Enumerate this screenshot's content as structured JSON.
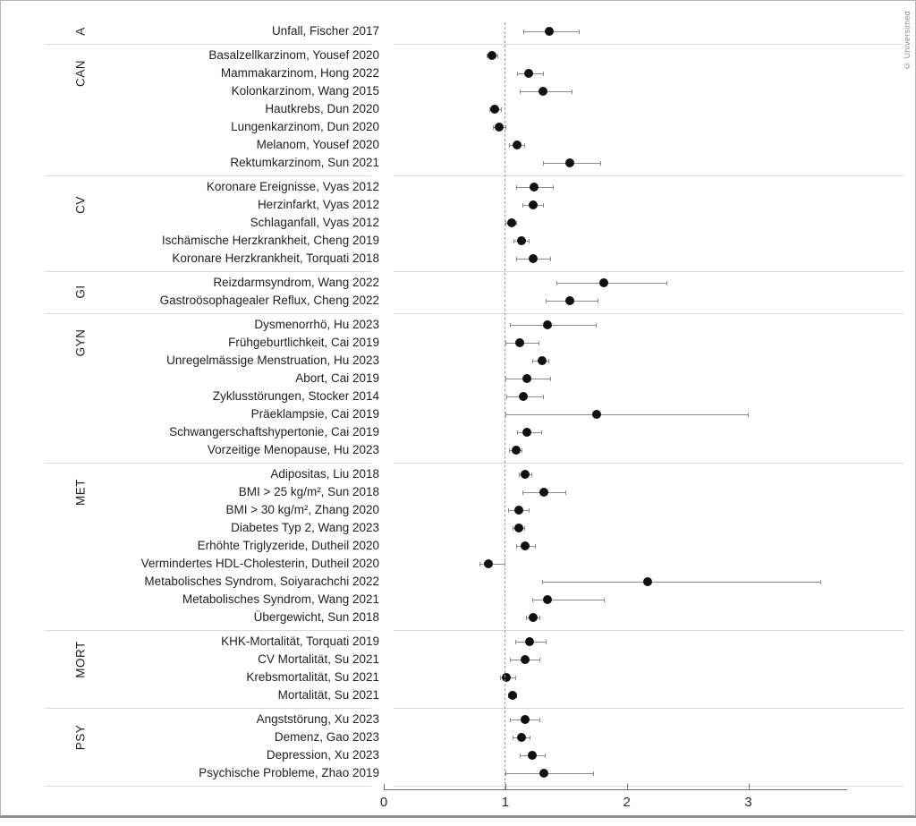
{
  "page": {
    "copyright": "© Universimed"
  },
  "chart_data": {
    "type": "scatter",
    "variant": "forest-plot",
    "title": "",
    "xlabel": "",
    "ylabel": "",
    "grid": false,
    "legend": null,
    "point_color": "#111111",
    "ci_color": "#8a8a8a",
    "reference_line_color": "#9b9b9b",
    "x_axis": {
      "min": 0,
      "max": 3.8,
      "tick_labels": [
        "0",
        "1",
        "2",
        "3"
      ],
      "tick_values": [
        0,
        1,
        2,
        3
      ],
      "reference_line": 1,
      "reference_style": "dashed"
    },
    "groups": [
      {
        "code": "A",
        "studies": [
          {
            "label": "Unfall, Fischer 2017",
            "est": 1.36,
            "lo": 1.15,
            "hi": 1.61
          }
        ]
      },
      {
        "code": "CAN",
        "studies": [
          {
            "label": "Basalzellkarzinom, Yousef 2020",
            "est": 0.89,
            "lo": 0.85,
            "hi": 0.94
          },
          {
            "label": "Mammakarzinom, Hong 2022",
            "est": 1.19,
            "lo": 1.1,
            "hi": 1.32
          },
          {
            "label": "Kolonkarzinom, Wang 2015",
            "est": 1.31,
            "lo": 1.12,
            "hi": 1.55
          },
          {
            "label": "Hautkrebs, Dun 2020",
            "est": 0.91,
            "lo": 0.87,
            "hi": 0.97
          },
          {
            "label": "Lungenkarzinom, Dun 2020",
            "est": 0.95,
            "lo": 0.9,
            "hi": 1.01
          },
          {
            "label": "Melanom, Yousef 2020",
            "est": 1.1,
            "lo": 1.03,
            "hi": 1.16
          },
          {
            "label": "Rektumkarzinom, Sun 2021",
            "est": 1.53,
            "lo": 1.31,
            "hi": 1.79
          }
        ]
      },
      {
        "code": "CV",
        "studies": [
          {
            "label": "Koronare Ereignisse, Vyas 2012",
            "est": 1.24,
            "lo": 1.09,
            "hi": 1.4
          },
          {
            "label": "Herzinfarkt, Vyas 2012",
            "est": 1.23,
            "lo": 1.14,
            "hi": 1.32
          },
          {
            "label": "Schlaganfall, Vyas 2012",
            "est": 1.05,
            "lo": 1.0,
            "hi": 1.1
          },
          {
            "label": "Ischämische Herzkrankheit, Cheng 2019",
            "est": 1.13,
            "lo": 1.07,
            "hi": 1.2
          },
          {
            "label": "Koronare Herzkrankheit, Torquati 2018",
            "est": 1.23,
            "lo": 1.09,
            "hi": 1.38
          }
        ]
      },
      {
        "code": "GI",
        "studies": [
          {
            "label": "Reizdarmsyndrom, Wang 2022",
            "est": 1.81,
            "lo": 1.42,
            "hi": 2.33
          },
          {
            "label": "Gastroösophagealer Reflux, Cheng 2022",
            "est": 1.53,
            "lo": 1.33,
            "hi": 1.77
          }
        ]
      },
      {
        "code": "GYN",
        "studies": [
          {
            "label": "Dysmenorrhö, Hu 2023",
            "est": 1.35,
            "lo": 1.04,
            "hi": 1.75
          },
          {
            "label": "Frühgeburtlichkeit, Cai 2019",
            "est": 1.12,
            "lo": 1.0,
            "hi": 1.28
          },
          {
            "label": "Unregelmässige Menstruation, Hu 2023",
            "est": 1.3,
            "lo": 1.22,
            "hi": 1.36
          },
          {
            "label": "Abort, Cai 2019",
            "est": 1.18,
            "lo": 1.0,
            "hi": 1.38
          },
          {
            "label": "Zyklusstörungen, Stocker 2014",
            "est": 1.15,
            "lo": 1.01,
            "hi": 1.32
          },
          {
            "label": "Präeklampsie, Cai 2019",
            "est": 1.75,
            "lo": 1.0,
            "hi": 3.0
          },
          {
            "label": "Schwangerschaftshypertonie, Cai 2019",
            "est": 1.18,
            "lo": 1.1,
            "hi": 1.3
          },
          {
            "label": "Vorzeitige Menopause, Hu 2023",
            "est": 1.09,
            "lo": 1.03,
            "hi": 1.14
          }
        ]
      },
      {
        "code": "MET",
        "studies": [
          {
            "label": "Adipositas, Liu 2018",
            "est": 1.16,
            "lo": 1.11,
            "hi": 1.22
          },
          {
            "label": "BMI > 25 kg/m², Sun 2018",
            "est": 1.32,
            "lo": 1.14,
            "hi": 1.5
          },
          {
            "label": "BMI > 30 kg/m², Zhang 2020",
            "est": 1.11,
            "lo": 1.02,
            "hi": 1.2
          },
          {
            "label": "Diabetes Typ 2, Wang 2023",
            "est": 1.11,
            "lo": 1.06,
            "hi": 1.16
          },
          {
            "label": "Erhöhte Triglyzeride, Dutheil 2020",
            "est": 1.16,
            "lo": 1.09,
            "hi": 1.25
          },
          {
            "label": "Vermindertes HDL-Cholesterin, Dutheil 2020",
            "est": 0.86,
            "lo": 0.79,
            "hi": 1.0
          },
          {
            "label": "Metabolisches Syndrom, Soiyarachchi 2022",
            "est": 2.17,
            "lo": 1.3,
            "hi": 3.6
          },
          {
            "label": "Metabolisches Syndrom, Wang 2021",
            "est": 1.35,
            "lo": 1.22,
            "hi": 1.82
          },
          {
            "label": "Übergewicht, Sun 2018",
            "est": 1.23,
            "lo": 1.17,
            "hi": 1.29
          }
        ]
      },
      {
        "code": "MORT",
        "studies": [
          {
            "label": "KHK-Mortalität, Torquati 2019",
            "est": 1.2,
            "lo": 1.08,
            "hi": 1.34
          },
          {
            "label": "CV Mortalität, Su 2021",
            "est": 1.16,
            "lo": 1.04,
            "hi": 1.29
          },
          {
            "label": "Krebsmortalität, Su 2021",
            "est": 1.01,
            "lo": 0.96,
            "hi": 1.09
          },
          {
            "label": "Mortalität, Su 2021",
            "est": 1.06,
            "lo": 1.02,
            "hi": 1.1
          }
        ]
      },
      {
        "code": "PSY",
        "studies": [
          {
            "label": "Angststörung, Xu 2023",
            "est": 1.16,
            "lo": 1.04,
            "hi": 1.29
          },
          {
            "label": "Demenz, Gao 2023",
            "est": 1.13,
            "lo": 1.06,
            "hi": 1.21
          },
          {
            "label": "Depression, Xu 2023",
            "est": 1.22,
            "lo": 1.12,
            "hi": 1.33
          },
          {
            "label": "Psychische Probleme, Zhao 2019",
            "est": 1.32,
            "lo": 1.0,
            "hi": 1.73
          }
        ]
      }
    ]
  }
}
